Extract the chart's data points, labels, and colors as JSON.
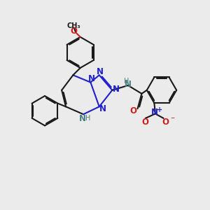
{
  "bg_color": "#ebebeb",
  "bond_color": "#1a1a1a",
  "n_color": "#2020cc",
  "o_color": "#cc2020",
  "nh_color": "#4a8080",
  "lw": 1.5,
  "fs": 8.5,
  "fs_small": 7.0,
  "xlim": [
    0,
    10
  ],
  "ylim": [
    0,
    10
  ]
}
